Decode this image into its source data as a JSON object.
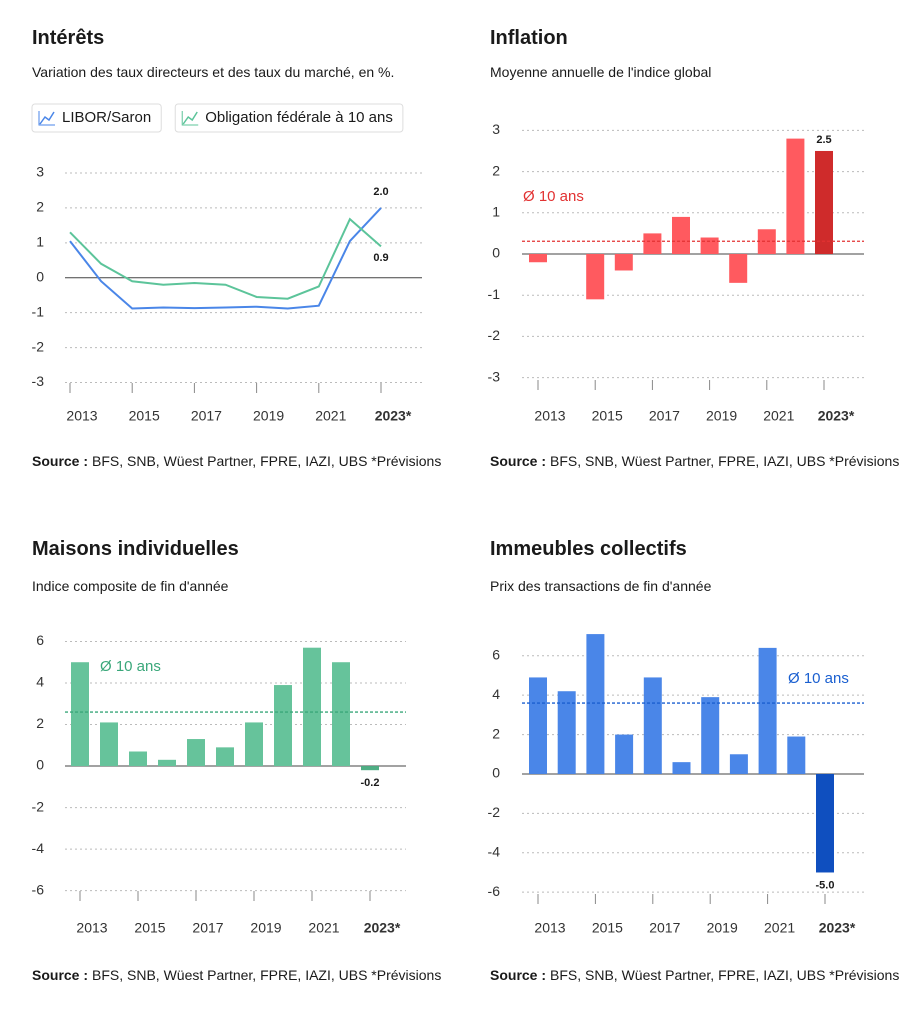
{
  "chart_data": [
    {
      "type": "line",
      "title": "Intérêts",
      "subtitle": "Variation des taux directeurs et des taux du marché, en %.",
      "legend": "top-left",
      "categories": [
        "2013",
        null,
        "2015",
        null,
        "2017",
        null,
        "2019",
        null,
        "2021",
        null,
        "2023*"
      ],
      "series": [
        {
          "name": "LIBOR/Saron",
          "color": "#4a86e8",
          "values": [
            1.05,
            -0.1,
            -0.88,
            -0.85,
            -0.87,
            -0.85,
            -0.83,
            -0.88,
            -0.8,
            1.05,
            2.0
          ],
          "value_labels": [
            null,
            null,
            null,
            null,
            null,
            null,
            null,
            null,
            null,
            null,
            "2.0"
          ]
        },
        {
          "name": "Obligation fédérale à 10 ans",
          "color": "#5cc49a",
          "values": [
            1.3,
            0.4,
            -0.1,
            -0.2,
            -0.15,
            -0.2,
            -0.55,
            -0.6,
            -0.25,
            1.68,
            0.9
          ],
          "value_labels": [
            null,
            null,
            null,
            null,
            null,
            null,
            null,
            null,
            null,
            null,
            "0.9"
          ]
        }
      ],
      "ylim": [
        -3.3,
        3.2
      ],
      "yticks": [
        -3,
        -2,
        -1,
        0,
        1,
        2,
        3
      ],
      "grid": true,
      "source_label": "Source :",
      "source": "BFS, SNB, Wüest Partner, FPRE, IAZI, UBS *Prévisions"
    },
    {
      "type": "bar",
      "title": "Inflation",
      "subtitle": "Moyenne annuelle de l'indice global",
      "categories": [
        "2013",
        null,
        "2015",
        null,
        "2017",
        null,
        "2019",
        null,
        "2021",
        null,
        "2023*"
      ],
      "values": [
        -0.2,
        0,
        -1.1,
        -0.4,
        0.5,
        0.9,
        0.4,
        -0.7,
        0.6,
        2.8,
        2.5
      ],
      "value_labels": [
        null,
        null,
        null,
        null,
        null,
        null,
        null,
        null,
        null,
        null,
        "2.5"
      ],
      "colors": [
        "#ff5a5f",
        "#ff5a5f",
        "#ff5a5f",
        "#ff5a5f",
        "#ff5a5f",
        "#ff5a5f",
        "#ff5a5f",
        "#ff5a5f",
        "#ff5a5f",
        "#ff5a5f",
        "#cf2b2b"
      ],
      "average": {
        "label": "Ø 10 ans",
        "value": 0.31,
        "color": "#e23232"
      },
      "ylim": [
        -3.3,
        3.3
      ],
      "yticks": [
        -3,
        -2,
        -1,
        0,
        1,
        2,
        3
      ],
      "grid": true,
      "source_label": "Source :",
      "source": "BFS, SNB, Wüest Partner, FPRE, IAZI, UBS *Prévisions"
    },
    {
      "type": "bar",
      "title": "Maisons individuelles",
      "subtitle": "Indice composite de fin d'année",
      "categories": [
        "2013",
        null,
        "2015",
        null,
        "2017",
        null,
        "2019",
        null,
        "2021",
        null,
        "2023*"
      ],
      "values": [
        5.0,
        2.1,
        0.7,
        0.3,
        1.3,
        0.9,
        2.1,
        3.9,
        5.7,
        5.0,
        -0.2
      ],
      "value_labels": [
        null,
        null,
        null,
        null,
        null,
        null,
        null,
        null,
        null,
        null,
        "-0.2"
      ],
      "colors": [
        "#66c39b",
        "#66c39b",
        "#66c39b",
        "#66c39b",
        "#66c39b",
        "#66c39b",
        "#66c39b",
        "#66c39b",
        "#66c39b",
        "#66c39b",
        "#4fae84"
      ],
      "average": {
        "label": "Ø 10 ans",
        "value": 2.6,
        "color": "#3aa77a"
      },
      "ylim": [
        -6.5,
        6.6
      ],
      "yticks": [
        -6,
        -4,
        -2,
        0,
        2,
        4,
        6
      ],
      "grid": true,
      "source_label": "Source :",
      "source": "BFS, SNB, Wüest Partner, FPRE, IAZI, UBS *Prévisions"
    },
    {
      "type": "bar",
      "title": "Immeubles collectifs",
      "subtitle": "Prix des transactions de fin d'année",
      "categories": [
        "2013",
        null,
        "2015",
        null,
        "2017",
        null,
        "2019",
        null,
        "2021",
        null,
        "2023*"
      ],
      "values": [
        4.9,
        4.2,
        7.1,
        2.0,
        4.9,
        0.6,
        3.9,
        1.0,
        6.4,
        1.9,
        -5.0
      ],
      "value_labels": [
        null,
        null,
        null,
        null,
        null,
        null,
        null,
        null,
        null,
        null,
        "-5.0"
      ],
      "colors": [
        "#4a86e8",
        "#4a86e8",
        "#4a86e8",
        "#4a86e8",
        "#4a86e8",
        "#4a86e8",
        "#4a86e8",
        "#4a86e8",
        "#4a86e8",
        "#4a86e8",
        "#0f4fbf"
      ],
      "average": {
        "label": "Ø 10 ans",
        "value": 3.6,
        "color": "#1a5fd0"
      },
      "ylim": [
        -6.6,
        6.8
      ],
      "yticks": [
        -6,
        -4,
        -2,
        0,
        2,
        4,
        6
      ],
      "grid": true,
      "source_label": "Source :",
      "source": "BFS, SNB, Wüest Partner, FPRE, IAZI, UBS *Prévisions"
    }
  ]
}
